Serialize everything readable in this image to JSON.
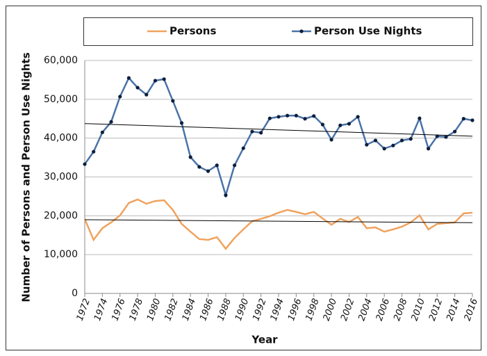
{
  "chart_data": {
    "type": "line",
    "x_label": "Year",
    "y_label": "Number of Persons and Person Use Nights",
    "x": [
      1972,
      1973,
      1974,
      1975,
      1976,
      1977,
      1978,
      1979,
      1980,
      1981,
      1982,
      1983,
      1984,
      1985,
      1986,
      1987,
      1988,
      1989,
      1990,
      1991,
      1992,
      1993,
      1994,
      1995,
      1996,
      1997,
      1998,
      1999,
      2000,
      2001,
      2002,
      2003,
      2004,
      2005,
      2006,
      2007,
      2008,
      2009,
      2010,
      2011,
      2012,
      2013,
      2014,
      2015,
      2016
    ],
    "series": [
      {
        "name": "Persons",
        "color": "#f0a25e",
        "markers": false,
        "values": [
          19200,
          13800,
          16800,
          18300,
          20100,
          23300,
          24200,
          23100,
          23800,
          24000,
          21500,
          17900,
          15900,
          14000,
          13800,
          14500,
          11500,
          14300,
          16500,
          18600,
          19200,
          19900,
          20800,
          21500,
          21000,
          20400,
          21000,
          19300,
          17700,
          19200,
          18400,
          19700,
          16800,
          17000,
          15900,
          16500,
          17200,
          18300,
          20100,
          16500,
          17900,
          18100,
          18300,
          20600,
          20800
        ]
      },
      {
        "name": "Person Use Nights",
        "color": "#4a72a8",
        "markers": true,
        "marker_color": "#0d1f3c",
        "values": [
          33300,
          36500,
          41500,
          44200,
          50700,
          55500,
          53000,
          51200,
          54800,
          55200,
          49600,
          43900,
          35100,
          32600,
          31500,
          33000,
          25300,
          33000,
          37400,
          41700,
          41400,
          45100,
          45500,
          45800,
          45800,
          45000,
          45700,
          43500,
          39600,
          43300,
          43700,
          45500,
          38300,
          39400,
          37300,
          38100,
          39400,
          39800,
          45100,
          37300,
          40500,
          40300,
          41700,
          45000,
          44600
        ]
      }
    ],
    "xlim": [
      1972,
      2016
    ],
    "xticks": [
      1972,
      1974,
      1976,
      1978,
      1980,
      1982,
      1984,
      1986,
      1988,
      1990,
      1992,
      1994,
      1996,
      1998,
      2000,
      2002,
      2004,
      2006,
      2008,
      2010,
      2012,
      2014,
      2016
    ],
    "ylim": [
      0,
      60000
    ],
    "yticks": [
      0,
      {
        "value": 10000,
        "label": "10,000"
      },
      {
        "value": 20000,
        "label": "20,000"
      },
      {
        "value": 30000,
        "label": "30,000"
      },
      {
        "value": 40000,
        "label": "40,000"
      },
      {
        "value": 50000,
        "label": "50,000"
      },
      {
        "value": 60000,
        "label": "60,000"
      }
    ],
    "grid": true,
    "trendlines": true,
    "legend": "top"
  }
}
